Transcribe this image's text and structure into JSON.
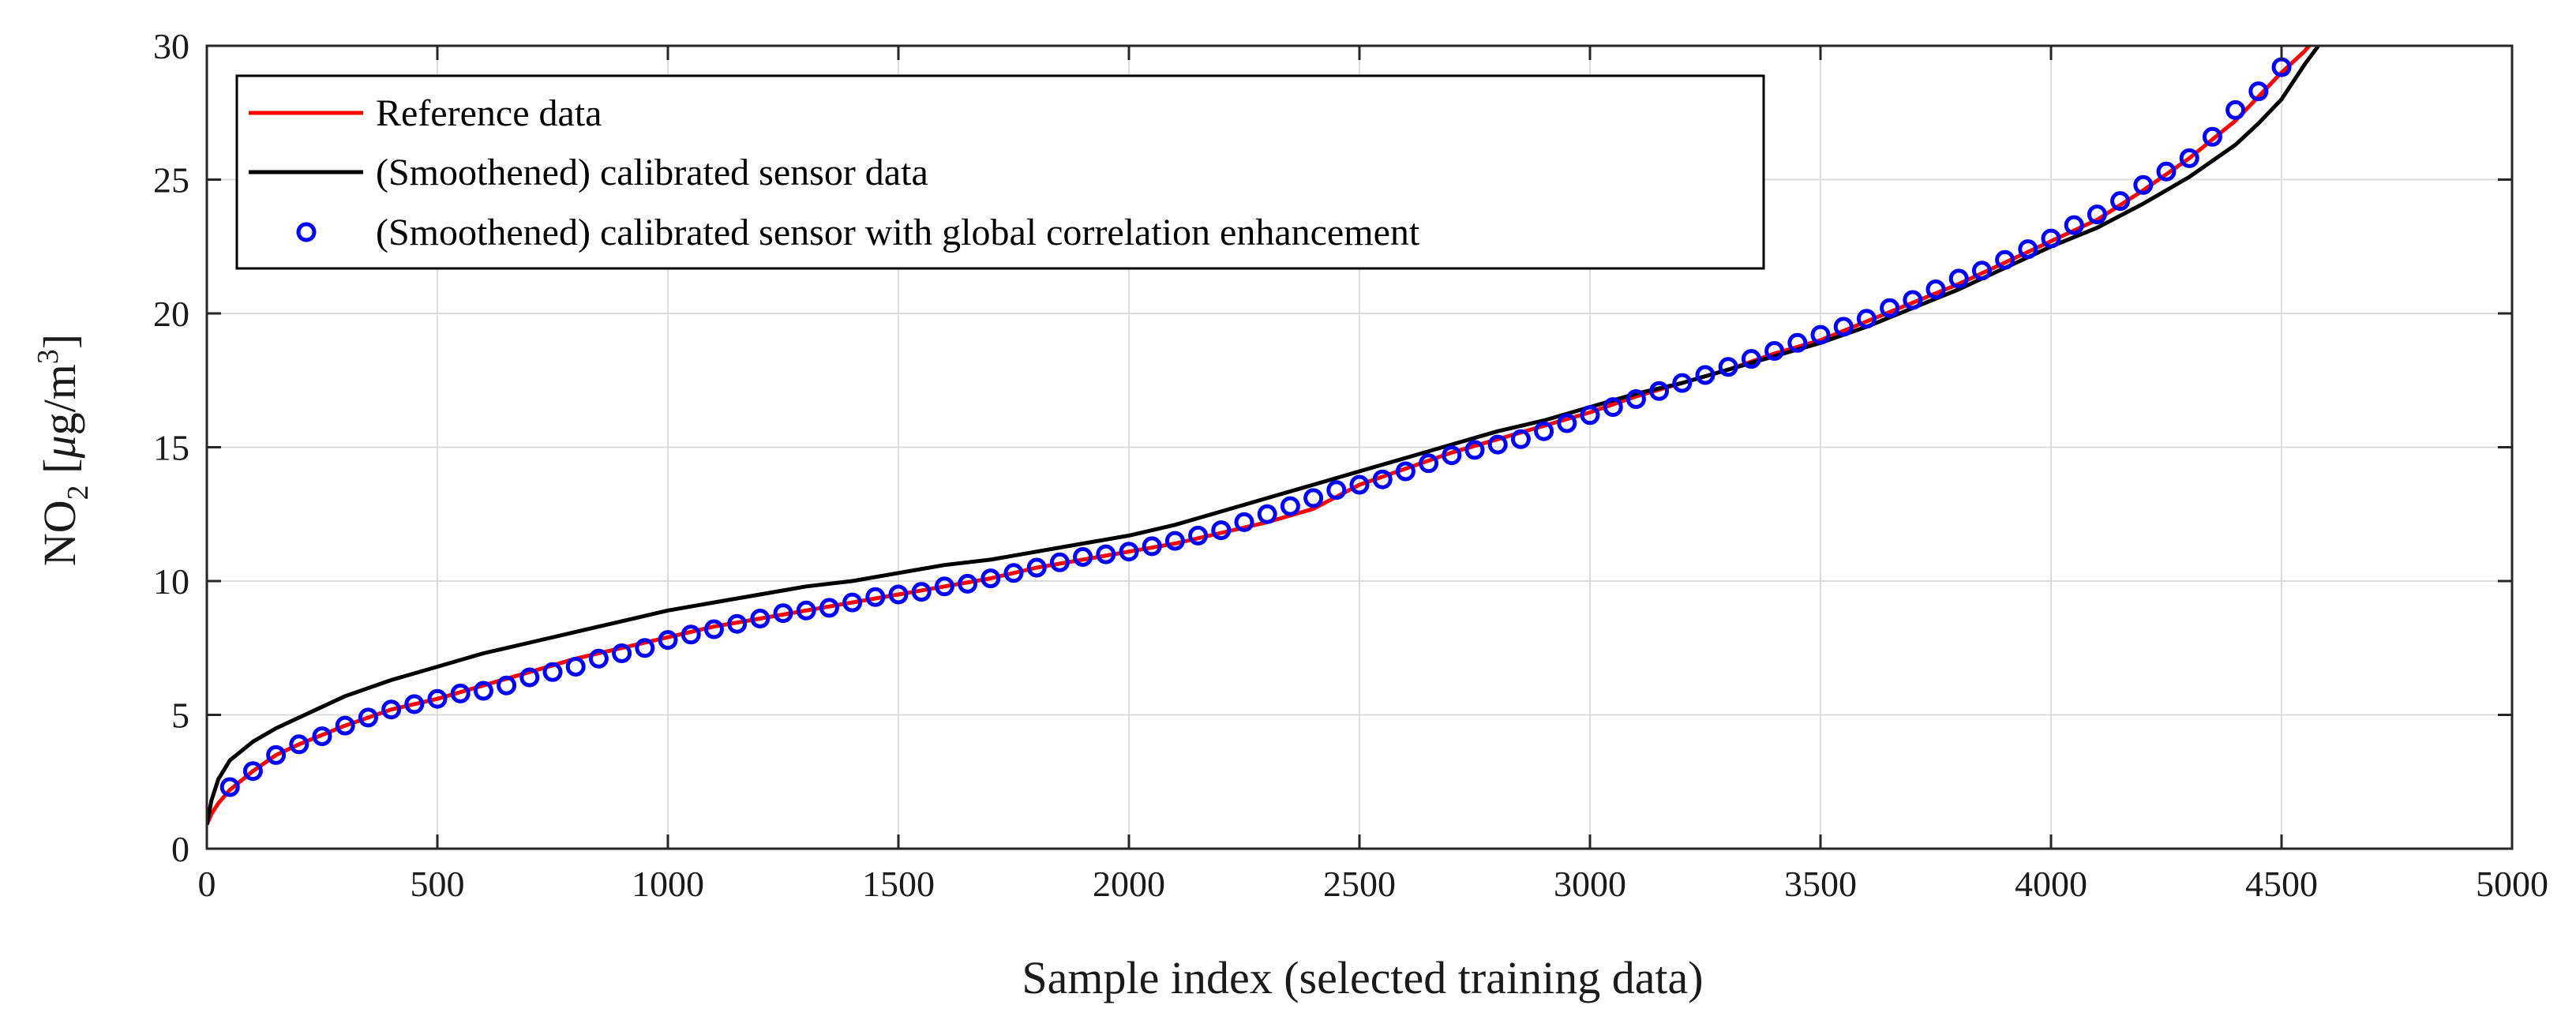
{
  "chart_data": {
    "type": "line",
    "title": "",
    "xlabel": "Sample index (selected training data)",
    "ylabel": {
      "main": "NO",
      "sub": "2",
      "unit_prefix": " [",
      "mu": "μ",
      "unit_mid": "g/m",
      "sup": "3",
      "unit_suffix": "]"
    },
    "xlim": [
      0,
      5000
    ],
    "ylim": [
      0,
      30
    ],
    "xticks": [
      0,
      500,
      1000,
      1500,
      2000,
      2500,
      3000,
      3500,
      4000,
      4500,
      5000
    ],
    "yticks": [
      0,
      5,
      10,
      15,
      20,
      25,
      30
    ],
    "xtick_labels": [
      "0",
      "500",
      "1000",
      "1500",
      "2000",
      "2500",
      "3000",
      "3500",
      "4000",
      "4500",
      "5000"
    ],
    "ytick_labels": [
      "0",
      "5",
      "10",
      "15",
      "20",
      "25",
      "30"
    ],
    "grid": true,
    "legend_position": "top-left",
    "series": [
      {
        "name": "Reference data",
        "style": "line",
        "color": "#ff0000",
        "x": [
          0,
          10,
          25,
          50,
          100,
          150,
          200,
          300,
          400,
          500,
          600,
          700,
          800,
          900,
          1000,
          1100,
          1200,
          1300,
          1400,
          1500,
          1600,
          1700,
          1800,
          1900,
          2000,
          2100,
          2200,
          2300,
          2400,
          2500,
          2600,
          2700,
          2800,
          2900,
          3000,
          3100,
          3200,
          3300,
          3400,
          3500,
          3600,
          3700,
          3800,
          3900,
          4000,
          4100,
          4200,
          4300,
          4400,
          4450,
          4500,
          4550,
          4560
        ],
        "y": [
          0.9,
          1.3,
          1.7,
          2.2,
          2.9,
          3.5,
          3.9,
          4.6,
          5.2,
          5.6,
          6.1,
          6.6,
          7.1,
          7.5,
          7.9,
          8.3,
          8.6,
          8.9,
          9.2,
          9.5,
          9.8,
          10.1,
          10.5,
          10.8,
          11.1,
          11.4,
          11.8,
          12.2,
          12.7,
          13.6,
          14.2,
          14.8,
          15.3,
          15.8,
          16.3,
          16.9,
          17.4,
          17.9,
          18.5,
          19.0,
          19.7,
          20.4,
          21.1,
          21.9,
          22.7,
          23.5,
          24.6,
          25.8,
          27.2,
          28.1,
          29.0,
          29.8,
          30.0
        ]
      },
      {
        "name": "(Smoothened) calibrated sensor data",
        "style": "line",
        "color": "#000000",
        "x": [
          0,
          10,
          25,
          50,
          100,
          150,
          200,
          250,
          300,
          400,
          500,
          600,
          700,
          800,
          900,
          1000,
          1100,
          1200,
          1300,
          1400,
          1500,
          1600,
          1700,
          1800,
          1900,
          2000,
          2100,
          2200,
          2300,
          2400,
          2500,
          2600,
          2700,
          2800,
          2900,
          3000,
          3100,
          3200,
          3300,
          3400,
          3500,
          3600,
          3700,
          3800,
          3900,
          4000,
          4100,
          4200,
          4300,
          4400,
          4450,
          4500,
          4550,
          4580
        ],
        "y": [
          0.9,
          1.8,
          2.6,
          3.3,
          4.0,
          4.5,
          4.9,
          5.3,
          5.7,
          6.3,
          6.8,
          7.3,
          7.7,
          8.1,
          8.5,
          8.9,
          9.2,
          9.5,
          9.8,
          10.0,
          10.3,
          10.6,
          10.8,
          11.1,
          11.4,
          11.7,
          12.1,
          12.6,
          13.1,
          13.6,
          14.1,
          14.6,
          15.1,
          15.6,
          16.0,
          16.5,
          17.0,
          17.4,
          17.9,
          18.4,
          18.9,
          19.5,
          20.2,
          20.9,
          21.7,
          22.5,
          23.2,
          24.1,
          25.1,
          26.3,
          27.1,
          28.0,
          29.3,
          30.0
        ]
      },
      {
        "name": "(Smoothened) calibrated sensor with global correlation enhancement",
        "style": "markers",
        "marker": "circle",
        "color": "#0000ff",
        "x": [
          50,
          100,
          150,
          200,
          250,
          300,
          350,
          400,
          450,
          500,
          550,
          600,
          650,
          700,
          750,
          800,
          850,
          900,
          950,
          1000,
          1050,
          1100,
          1150,
          1200,
          1250,
          1300,
          1350,
          1400,
          1450,
          1500,
          1550,
          1600,
          1650,
          1700,
          1750,
          1800,
          1850,
          1900,
          1950,
          2000,
          2050,
          2100,
          2150,
          2200,
          2250,
          2300,
          2350,
          2400,
          2450,
          2500,
          2550,
          2600,
          2650,
          2700,
          2750,
          2800,
          2850,
          2900,
          2950,
          3000,
          3050,
          3100,
          3150,
          3200,
          3250,
          3300,
          3350,
          3400,
          3450,
          3500,
          3550,
          3600,
          3650,
          3700,
          3750,
          3800,
          3850,
          3900,
          3950,
          4000,
          4050,
          4100,
          4150,
          4200,
          4250,
          4300,
          4350,
          4400,
          4450,
          4500
        ],
        "y": [
          2.3,
          2.9,
          3.5,
          3.9,
          4.2,
          4.6,
          4.9,
          5.2,
          5.4,
          5.6,
          5.8,
          5.9,
          6.1,
          6.4,
          6.6,
          6.8,
          7.1,
          7.3,
          7.5,
          7.8,
          8.0,
          8.2,
          8.4,
          8.6,
          8.8,
          8.9,
          9.0,
          9.2,
          9.4,
          9.5,
          9.6,
          9.8,
          9.9,
          10.1,
          10.3,
          10.5,
          10.7,
          10.9,
          11.0,
          11.1,
          11.3,
          11.5,
          11.7,
          11.9,
          12.2,
          12.5,
          12.8,
          13.1,
          13.4,
          13.6,
          13.8,
          14.1,
          14.4,
          14.7,
          14.9,
          15.1,
          15.3,
          15.6,
          15.9,
          16.2,
          16.5,
          16.8,
          17.1,
          17.4,
          17.7,
          18.0,
          18.3,
          18.6,
          18.9,
          19.2,
          19.5,
          19.8,
          20.2,
          20.5,
          20.9,
          21.3,
          21.6,
          22.0,
          22.4,
          22.8,
          23.3,
          23.7,
          24.2,
          24.8,
          25.3,
          25.8,
          26.6,
          27.6,
          28.3,
          29.2
        ]
      }
    ]
  }
}
